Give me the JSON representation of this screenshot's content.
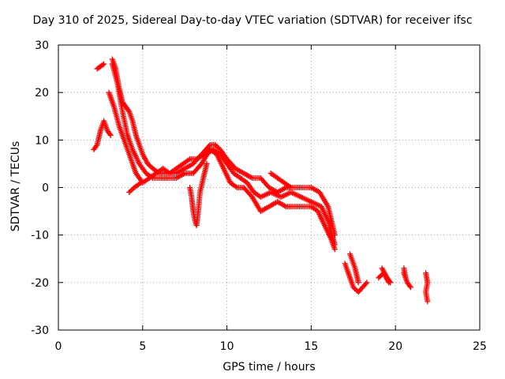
{
  "chart_data": {
    "type": "scatter",
    "title": "Day 310 of 2025, Sidereal Day-to-day VTEC variation (SDTVAR) for receiver ifsc",
    "xlabel": "GPS time / hours",
    "ylabel": "SDTVAR / TECUs",
    "xlim": [
      0,
      25
    ],
    "ylim": [
      -30,
      30
    ],
    "xticks": [
      0,
      5,
      10,
      15,
      20,
      25
    ],
    "yticks": [
      -30,
      -20,
      -10,
      0,
      10,
      20,
      30
    ],
    "grid": true,
    "marker": "+",
    "color": "#ff0000",
    "segments": [
      [
        [
          2.1,
          8
        ],
        [
          2.3,
          9
        ],
        [
          2.5,
          12
        ],
        [
          2.7,
          14
        ],
        [
          2.9,
          12
        ],
        [
          3.1,
          11
        ]
      ],
      [
        [
          2.3,
          25
        ],
        [
          2.5,
          25.5
        ],
        [
          2.7,
          26
        ]
      ],
      [
        [
          3.2,
          27
        ],
        [
          3.4,
          25
        ],
        [
          3.6,
          21
        ],
        [
          3.8,
          18
        ],
        [
          4.0,
          17
        ],
        [
          4.2,
          16
        ],
        [
          4.4,
          14
        ],
        [
          4.6,
          11
        ],
        [
          4.8,
          9
        ],
        [
          5.0,
          7
        ],
        [
          5.3,
          5
        ],
        [
          5.6,
          4
        ],
        [
          6.0,
          3
        ],
        [
          6.5,
          3
        ],
        [
          7.0,
          3
        ],
        [
          7.5,
          4
        ],
        [
          8.0,
          5
        ],
        [
          8.5,
          7
        ],
        [
          9.0,
          9
        ],
        [
          9.3,
          9
        ],
        [
          9.6,
          8
        ],
        [
          10.0,
          6
        ],
        [
          10.5,
          4
        ],
        [
          11.0,
          3
        ],
        [
          11.5,
          2
        ],
        [
          12.0,
          2
        ],
        [
          12.5,
          0
        ],
        [
          13.0,
          -1
        ],
        [
          13.5,
          0
        ],
        [
          14.0,
          0
        ],
        [
          14.5,
          0
        ],
        [
          15.0,
          0
        ],
        [
          15.5,
          -1
        ],
        [
          16.0,
          -4
        ],
        [
          16.4,
          -10
        ]
      ],
      [
        [
          3.2,
          26
        ],
        [
          3.5,
          22
        ],
        [
          3.8,
          16
        ],
        [
          4.1,
          11
        ],
        [
          4.4,
          8
        ],
        [
          4.8,
          5
        ],
        [
          5.2,
          3
        ],
        [
          5.6,
          2
        ],
        [
          6.0,
          2
        ],
        [
          6.5,
          2
        ],
        [
          7.0,
          2
        ],
        [
          7.5,
          3
        ],
        [
          8.0,
          3
        ],
        [
          8.5,
          5
        ],
        [
          9.0,
          8
        ],
        [
          9.4,
          7
        ],
        [
          9.8,
          4
        ],
        [
          10.2,
          1
        ],
        [
          10.6,
          0
        ],
        [
          11.0,
          0
        ],
        [
          11.5,
          -2
        ],
        [
          12.0,
          -5
        ],
        [
          12.5,
          -4
        ],
        [
          13.0,
          -3
        ],
        [
          13.5,
          -4
        ],
        [
          14.0,
          -4
        ],
        [
          14.5,
          -4
        ],
        [
          15.0,
          -4
        ],
        [
          15.4,
          -5
        ],
        [
          15.8,
          -8
        ],
        [
          16.2,
          -11
        ],
        [
          16.4,
          -13
        ]
      ],
      [
        [
          3.0,
          20
        ],
        [
          3.3,
          17
        ],
        [
          3.6,
          13
        ],
        [
          4.0,
          9
        ],
        [
          4.3,
          6
        ],
        [
          4.6,
          3
        ],
        [
          5.0,
          1
        ],
        [
          5.4,
          2
        ],
        [
          5.8,
          3
        ],
        [
          6.2,
          4
        ],
        [
          6.6,
          3
        ],
        [
          7.0,
          4
        ],
        [
          7.4,
          5
        ],
        [
          7.8,
          6
        ],
        [
          8.2,
          6
        ],
        [
          8.7,
          7
        ],
        [
          9.2,
          8
        ],
        [
          9.6,
          7
        ],
        [
          10.0,
          5
        ],
        [
          10.4,
          3
        ],
        [
          10.8,
          2
        ],
        [
          11.2,
          1
        ],
        [
          11.6,
          -1
        ],
        [
          12.0,
          -2
        ],
        [
          12.6,
          -1
        ],
        [
          13.2,
          -2
        ],
        [
          13.8,
          -1
        ],
        [
          14.4,
          -2
        ],
        [
          15.0,
          -3
        ],
        [
          15.6,
          -4
        ],
        [
          16.0,
          -7
        ],
        [
          16.4,
          -12
        ]
      ],
      [
        [
          4.2,
          -1
        ],
        [
          4.5,
          0
        ],
        [
          4.9,
          1
        ]
      ],
      [
        [
          7.8,
          0
        ],
        [
          7.9,
          -2
        ],
        [
          8.0,
          -5
        ],
        [
          8.1,
          -7
        ],
        [
          8.2,
          -8
        ],
        [
          8.3,
          -5
        ],
        [
          8.4,
          -1
        ],
        [
          8.6,
          2
        ],
        [
          8.8,
          5
        ]
      ],
      [
        [
          12.6,
          3
        ],
        [
          13.0,
          2
        ],
        [
          13.4,
          1
        ],
        [
          13.8,
          0
        ]
      ],
      [
        [
          17.0,
          -16
        ],
        [
          17.3,
          -19
        ],
        [
          17.5,
          -21
        ],
        [
          17.8,
          -22
        ],
        [
          18.3,
          -20
        ]
      ],
      [
        [
          17.3,
          -14
        ],
        [
          17.6,
          -17
        ],
        [
          17.8,
          -20
        ]
      ],
      [
        [
          19.0,
          -19
        ],
        [
          19.3,
          -18
        ],
        [
          19.6,
          -20
        ]
      ],
      [
        [
          19.2,
          -17
        ],
        [
          19.5,
          -19
        ],
        [
          19.7,
          -20
        ]
      ],
      [
        [
          20.5,
          -18
        ],
        [
          20.7,
          -20
        ],
        [
          20.9,
          -21
        ]
      ],
      [
        [
          20.5,
          -17
        ],
        [
          20.6,
          -19
        ]
      ],
      [
        [
          21.8,
          -18
        ],
        [
          21.9,
          -20
        ],
        [
          21.8,
          -22
        ],
        [
          21.9,
          -24
        ]
      ]
    ]
  }
}
